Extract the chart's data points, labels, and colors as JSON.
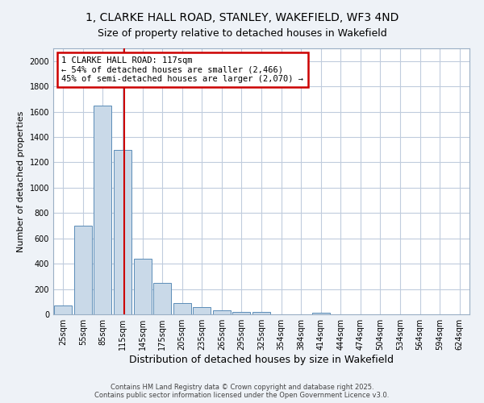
{
  "title": "1, CLARKE HALL ROAD, STANLEY, WAKEFIELD, WF3 4ND",
  "subtitle": "Size of property relative to detached houses in Wakefield",
  "xlabel": "Distribution of detached houses by size in Wakefield",
  "ylabel": "Number of detached properties",
  "categories": [
    "25sqm",
    "55sqm",
    "85sqm",
    "115sqm",
    "145sqm",
    "175sqm",
    "205sqm",
    "235sqm",
    "265sqm",
    "295sqm",
    "325sqm",
    "354sqm",
    "384sqm",
    "414sqm",
    "444sqm",
    "474sqm",
    "504sqm",
    "534sqm",
    "564sqm",
    "594sqm",
    "624sqm"
  ],
  "values": [
    70,
    700,
    1650,
    1300,
    440,
    250,
    90,
    55,
    30,
    20,
    20,
    0,
    0,
    15,
    0,
    0,
    0,
    0,
    0,
    0,
    0
  ],
  "bar_color": "#c9d9e8",
  "bar_edge_color": "#5b8db8",
  "annotation_line1": "1 CLARKE HALL ROAD: 117sqm",
  "annotation_line2": "← 54% of detached houses are smaller (2,466)",
  "annotation_line3": "45% of semi-detached houses are larger (2,070) →",
  "annotation_box_facecolor": "#ffffff",
  "annotation_box_edgecolor": "#cc0000",
  "ylim": [
    0,
    2100
  ],
  "yticks": [
    0,
    200,
    400,
    600,
    800,
    1000,
    1200,
    1400,
    1600,
    1800,
    2000
  ],
  "footer1": "Contains HM Land Registry data © Crown copyright and database right 2025.",
  "footer2": "Contains public sector information licensed under the Open Government Licence v3.0.",
  "bg_color": "#eef2f7",
  "plot_bg_color": "#ffffff",
  "grid_color": "#c0ccdd",
  "title_fontsize": 10,
  "subtitle_fontsize": 9,
  "xlabel_fontsize": 9,
  "ylabel_fontsize": 8,
  "tick_fontsize": 7,
  "footer_fontsize": 6,
  "annot_fontsize": 7.5
}
